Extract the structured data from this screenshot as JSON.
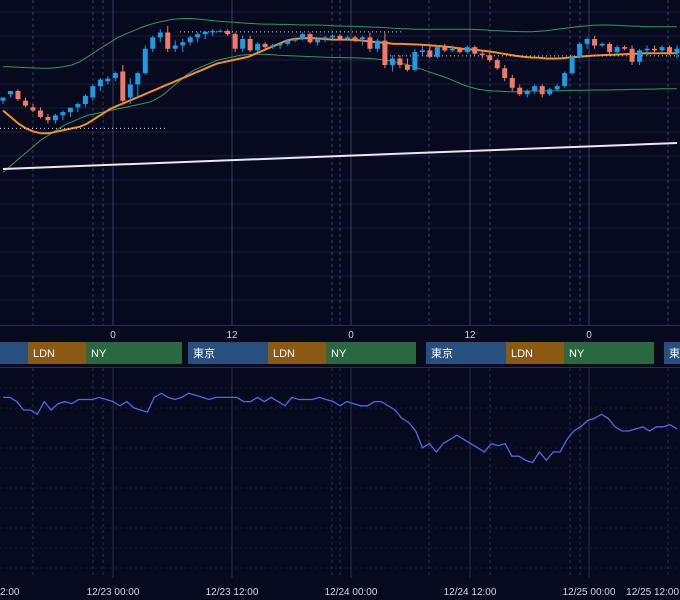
{
  "colors": {
    "background": "#070a1e",
    "grid": "#1a2040",
    "vline": "#5a6a9a",
    "up": "#1e9be6",
    "down": "#f07a6a",
    "ma_mid": "#f0902a",
    "bands": "#2e9a5a",
    "long_ma": "#e8e8f0",
    "oscillator": "#4a6ae8",
    "tokyo": "#27507e",
    "london": "#8a5a14",
    "ny": "#2a6840",
    "text": "#ffffff"
  },
  "session_labels": {
    "tokyo": "東京",
    "london": "LDN",
    "ny": "NY"
  },
  "session_bar": [
    {
      "row": [
        {
          "s": "tokyo",
          "label": ""
        },
        {
          "s": "london",
          "label": "LDN"
        },
        {
          "s": "ny",
          "label": "NY"
        }
      ]
    },
    {
      "row": [
        {
          "s": "tokyo",
          "label": "東京"
        },
        {
          "s": "london",
          "label": "LDN"
        },
        {
          "s": "ny",
          "label": "NY"
        }
      ]
    },
    {
      "row": [
        {
          "s": "tokyo",
          "label": "東京"
        },
        {
          "s": "london",
          "label": "LDN"
        },
        {
          "s": "ny",
          "label": "NY"
        }
      ]
    },
    {
      "row": [
        {
          "s": "tokyo",
          "label": "東京"
        }
      ]
    }
  ],
  "hour_ticks": [
    "0",
    "12",
    "0",
    "12",
    "0"
  ],
  "date_ticks": [
    "2:00",
    "12/23 00:00",
    "12/23 12:00",
    "12/24 00:00",
    "12/24 12:00",
    "12/25 00:00",
    "12/25 12:00"
  ],
  "chart_data": [
    {
      "type": "candlestick",
      "title": "",
      "ylim": [
        0,
        100
      ],
      "grid": true,
      "candles": [
        {
          "o": 69,
          "h": 70,
          "l": 68,
          "c": 70
        },
        {
          "o": 71,
          "h": 72,
          "l": 70,
          "c": 72
        },
        {
          "o": 72,
          "h": 72.5,
          "l": 69,
          "c": 69.5
        },
        {
          "o": 69,
          "h": 70,
          "l": 67,
          "c": 67.5
        },
        {
          "o": 67,
          "h": 68,
          "l": 65.5,
          "c": 66
        },
        {
          "o": 66,
          "h": 67,
          "l": 63.5,
          "c": 64
        },
        {
          "o": 64,
          "h": 65,
          "l": 62,
          "c": 63
        },
        {
          "o": 63,
          "h": 65,
          "l": 62,
          "c": 64.5
        },
        {
          "o": 64.5,
          "h": 66,
          "l": 63,
          "c": 65.5
        },
        {
          "o": 65.5,
          "h": 67,
          "l": 64,
          "c": 66.8
        },
        {
          "o": 67,
          "h": 68.5,
          "l": 65.5,
          "c": 68
        },
        {
          "o": 68,
          "h": 71,
          "l": 67,
          "c": 70.5
        },
        {
          "o": 70,
          "h": 74,
          "l": 69,
          "c": 73.5
        },
        {
          "o": 73.5,
          "h": 76,
          "l": 72,
          "c": 75.5
        },
        {
          "o": 75,
          "h": 76.5,
          "l": 74,
          "c": 75.8
        },
        {
          "o": 76,
          "h": 78,
          "l": 75,
          "c": 77.5
        },
        {
          "o": 78,
          "h": 80,
          "l": 68,
          "c": 69
        },
        {
          "o": 70,
          "h": 76,
          "l": 68,
          "c": 74
        },
        {
          "o": 74,
          "h": 78,
          "l": 70,
          "c": 77.5
        },
        {
          "o": 77.5,
          "h": 86,
          "l": 77,
          "c": 85
        },
        {
          "o": 85,
          "h": 89,
          "l": 84,
          "c": 88.5
        },
        {
          "o": 88.5,
          "h": 91,
          "l": 87,
          "c": 90
        },
        {
          "o": 90,
          "h": 92,
          "l": 84,
          "c": 85
        },
        {
          "o": 85,
          "h": 87.5,
          "l": 84,
          "c": 86
        },
        {
          "o": 86,
          "h": 88,
          "l": 84,
          "c": 87
        },
        {
          "o": 87,
          "h": 89,
          "l": 86,
          "c": 88.5
        },
        {
          "o": 88.5,
          "h": 90,
          "l": 87,
          "c": 89.5
        },
        {
          "o": 89.5,
          "h": 90.5,
          "l": 88,
          "c": 90.2
        },
        {
          "o": 90,
          "h": 91,
          "l": 89,
          "c": 90.5
        },
        {
          "o": 90.5,
          "h": 91,
          "l": 90,
          "c": 90.5
        },
        {
          "o": 90.5,
          "h": 91,
          "l": 89,
          "c": 89.5
        },
        {
          "o": 89.5,
          "h": 90,
          "l": 84,
          "c": 85
        },
        {
          "o": 85,
          "h": 89,
          "l": 84,
          "c": 88
        },
        {
          "o": 88,
          "h": 89,
          "l": 84,
          "c": 84.5
        },
        {
          "o": 84.5,
          "h": 87,
          "l": 84,
          "c": 86.5
        },
        {
          "o": 86.5,
          "h": 87,
          "l": 85,
          "c": 85.5
        },
        {
          "o": 85.5,
          "h": 86.5,
          "l": 85,
          "c": 86
        },
        {
          "o": 86,
          "h": 87,
          "l": 85,
          "c": 86.5
        },
        {
          "o": 86.5,
          "h": 88,
          "l": 86,
          "c": 87.5
        },
        {
          "o": 87.5,
          "h": 88.5,
          "l": 87,
          "c": 88
        },
        {
          "o": 88,
          "h": 90,
          "l": 87.5,
          "c": 89.5
        },
        {
          "o": 89.5,
          "h": 90,
          "l": 86.5,
          "c": 87
        },
        {
          "o": 87,
          "h": 88.5,
          "l": 86,
          "c": 88
        },
        {
          "o": 88,
          "h": 89,
          "l": 87,
          "c": 88.5
        },
        {
          "o": 88.5,
          "h": 89.5,
          "l": 88,
          "c": 89
        },
        {
          "o": 89,
          "h": 89.5,
          "l": 87.5,
          "c": 88
        },
        {
          "o": 88,
          "h": 89,
          "l": 87.5,
          "c": 88.5
        },
        {
          "o": 88.5,
          "h": 89,
          "l": 87,
          "c": 88
        },
        {
          "o": 88,
          "h": 89,
          "l": 86,
          "c": 88.5
        },
        {
          "o": 88.5,
          "h": 90,
          "l": 84,
          "c": 85
        },
        {
          "o": 85,
          "h": 88,
          "l": 84,
          "c": 87.5
        },
        {
          "o": 87.5,
          "h": 90,
          "l": 79,
          "c": 80
        },
        {
          "o": 80,
          "h": 83,
          "l": 78,
          "c": 82
        },
        {
          "o": 82,
          "h": 83,
          "l": 79,
          "c": 80
        },
        {
          "o": 80,
          "h": 82,
          "l": 78,
          "c": 78.5
        },
        {
          "o": 78.5,
          "h": 85,
          "l": 78,
          "c": 84
        },
        {
          "o": 84,
          "h": 86,
          "l": 83,
          "c": 84.5
        },
        {
          "o": 84.5,
          "h": 86,
          "l": 82,
          "c": 82.5
        },
        {
          "o": 82.5,
          "h": 86,
          "l": 82,
          "c": 85.5
        },
        {
          "o": 85.5,
          "h": 86.5,
          "l": 84,
          "c": 84.5
        },
        {
          "o": 84.5,
          "h": 86,
          "l": 84,
          "c": 85
        },
        {
          "o": 85,
          "h": 85.5,
          "l": 83.5,
          "c": 84
        },
        {
          "o": 84,
          "h": 86,
          "l": 83.5,
          "c": 85.5
        },
        {
          "o": 85.5,
          "h": 86,
          "l": 83,
          "c": 83.5
        },
        {
          "o": 83.5,
          "h": 84.5,
          "l": 82,
          "c": 83
        },
        {
          "o": 83,
          "h": 84,
          "l": 81,
          "c": 81.5
        },
        {
          "o": 81.5,
          "h": 82,
          "l": 78.5,
          "c": 79
        },
        {
          "o": 79,
          "h": 80,
          "l": 75,
          "c": 76
        },
        {
          "o": 76,
          "h": 77,
          "l": 72,
          "c": 73
        },
        {
          "o": 73,
          "h": 74,
          "l": 70.5,
          "c": 71
        },
        {
          "o": 71,
          "h": 72.5,
          "l": 70,
          "c": 72
        },
        {
          "o": 72,
          "h": 74,
          "l": 71,
          "c": 73.5
        },
        {
          "o": 73.5,
          "h": 74,
          "l": 70,
          "c": 71
        },
        {
          "o": 71,
          "h": 73,
          "l": 70.5,
          "c": 72.5
        },
        {
          "o": 72.5,
          "h": 74,
          "l": 72,
          "c": 73.5
        },
        {
          "o": 73.5,
          "h": 78,
          "l": 73,
          "c": 77.5
        },
        {
          "o": 77.5,
          "h": 83,
          "l": 77,
          "c": 82.5
        },
        {
          "o": 82.5,
          "h": 87,
          "l": 82,
          "c": 86.5
        },
        {
          "o": 86.5,
          "h": 88.5,
          "l": 85,
          "c": 88
        },
        {
          "o": 88,
          "h": 89,
          "l": 85,
          "c": 86
        },
        {
          "o": 86,
          "h": 87,
          "l": 85.5,
          "c": 86.5
        },
        {
          "o": 86.5,
          "h": 87,
          "l": 83,
          "c": 84
        },
        {
          "o": 84,
          "h": 86,
          "l": 83.5,
          "c": 85.5
        },
        {
          "o": 85.5,
          "h": 86,
          "l": 84.5,
          "c": 85
        },
        {
          "o": 85,
          "h": 86,
          "l": 80,
          "c": 81
        },
        {
          "o": 81,
          "h": 85,
          "l": 80,
          "c": 84.5
        },
        {
          "o": 84.5,
          "h": 86,
          "l": 83,
          "c": 85
        },
        {
          "o": 85,
          "h": 86,
          "l": 84,
          "c": 84.5
        },
        {
          "o": 84.5,
          "h": 86,
          "l": 84,
          "c": 85.5
        },
        {
          "o": 85.5,
          "h": 86,
          "l": 83,
          "c": 83.5
        },
        {
          "o": 83.5,
          "h": 86,
          "l": 82,
          "c": 85
        }
      ],
      "ma_mid": [
        66,
        64,
        62,
        60.5,
        59.5,
        59,
        59,
        59.5,
        60,
        60.5,
        61,
        62,
        63.5,
        65,
        66.5,
        67.5,
        68.5,
        69.5,
        70.5,
        71.5,
        72.5,
        73.5,
        74.5,
        75.5,
        76.5,
        77.5,
        78.5,
        79.5,
        80.5,
        81,
        81.5,
        82,
        82.5,
        83.5,
        84.5,
        85.5,
        86.5,
        87.5,
        88,
        88.2,
        88.3,
        88.2,
        88,
        87.8,
        87.8,
        87.8,
        87.7,
        87.5,
        87.2,
        87,
        86.8,
        86.5,
        86.5,
        86.4,
        86.3,
        86.2,
        86,
        85.8,
        85.6,
        85.3,
        85,
        84.8,
        84.6,
        84.3,
        84,
        83.6,
        83.2,
        82.8,
        82.5,
        82.3,
        82.2,
        82,
        82,
        82.1,
        82.3,
        82.5,
        82.7,
        82.9,
        83,
        83.1,
        83.2,
        83.3,
        83.4,
        83.5,
        83.6,
        83.6,
        83.6,
        83.6,
        83.6
      ],
      "band_upper": [
        79.5,
        79.4,
        79.3,
        79.2,
        79.1,
        79,
        79,
        79.2,
        79.5,
        80,
        81,
        82.5,
        84,
        85.5,
        87,
        88.5,
        89.5,
        90.5,
        91.5,
        92.3,
        93,
        93.5,
        94,
        94.2,
        94.3,
        94.2,
        94,
        93.8,
        93.5,
        93.3,
        93.2,
        93,
        92.8,
        92.7,
        92.6,
        92.6,
        92.5,
        92.5,
        92.4,
        92.3,
        92.3,
        92.3,
        92.2,
        92.1,
        92,
        91.9,
        91.9,
        91.8,
        91.7,
        91.6,
        91.5,
        91.3,
        91.2,
        91.1,
        91,
        91,
        91,
        91,
        91,
        91,
        91,
        91,
        90.9,
        90.8,
        90.6,
        90.5,
        90.4,
        90.3,
        90.2,
        90.2,
        90.4,
        90.6,
        90.9,
        91.2,
        91.5,
        91.8,
        92,
        92.2,
        92.3,
        92.3,
        92.2,
        92.1,
        92,
        91.9,
        91.8,
        91.8,
        91.8,
        91.8,
        91.8
      ],
      "band_lower": [
        47,
        49,
        51,
        53,
        55,
        57,
        58.5,
        60,
        61.5,
        62.5,
        63.5,
        64.5,
        65,
        65.5,
        66,
        66.5,
        67,
        67.5,
        68,
        68.5,
        69.5,
        71,
        73,
        75,
        77,
        78.5,
        79.5,
        80.5,
        81.5,
        82,
        82.5,
        83,
        83.2,
        83.3,
        83.3,
        83.2,
        83,
        82.9,
        82.8,
        82.7,
        82.6,
        82.5,
        82.4,
        82.3,
        82.3,
        82.2,
        82.2,
        82.1,
        82,
        81.8,
        81.5,
        81,
        80.5,
        80,
        79.2,
        78.4,
        77.6,
        76.8,
        76,
        75,
        74,
        73.2,
        72.6,
        72.2,
        72,
        71.9,
        71.8,
        71.8,
        71.9,
        72,
        72,
        72.1,
        72.1,
        72.1,
        72.2,
        72.2,
        72.2,
        72.3,
        72.3,
        72.3,
        72.4,
        72.4,
        72.5,
        72.5,
        72.6,
        72.6,
        72.7,
        72.7,
        72.7
      ],
      "long_ma": [
        48,
        56
      ]
    },
    {
      "type": "line",
      "title": "",
      "ylim": [
        0,
        100
      ],
      "grid": true,
      "series": [
        {
          "values": [
            86,
            86,
            84,
            80,
            80,
            78,
            84,
            80,
            83,
            84,
            83,
            85,
            85,
            85,
            86,
            85,
            84,
            82,
            84,
            81,
            80,
            79,
            86,
            88,
            86,
            85,
            86,
            88,
            87,
            86,
            85,
            86,
            86,
            86,
            86,
            84,
            84,
            86,
            84,
            86,
            84,
            82,
            86,
            85,
            85,
            85,
            86,
            85,
            84,
            82,
            84,
            83,
            82,
            82,
            84,
            84,
            82,
            80,
            76,
            74,
            70,
            62,
            64,
            60,
            64,
            66,
            68,
            66,
            64,
            62,
            60,
            64,
            63,
            64,
            58,
            58,
            56,
            55,
            60,
            56,
            60,
            60,
            66,
            70,
            72,
            75,
            76,
            78,
            76,
            72,
            70,
            70,
            71,
            72,
            70,
            72,
            72,
            73,
            71
          ]
        }
      ]
    }
  ]
}
